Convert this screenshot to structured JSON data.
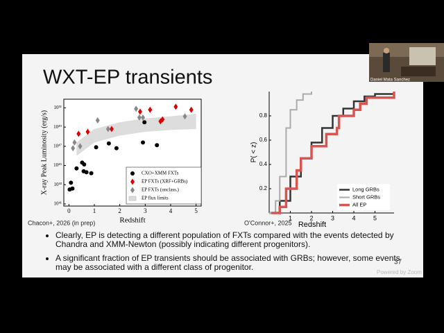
{
  "slide": {
    "title": "WXT-EP transients",
    "captions": [
      "Chacon+, 2026 (in prep)",
      "O'Connor+, 2025"
    ],
    "bullets": [
      "Clearly, EP is detecting a different population of FXTs compared with the events detected by Chandra and XMM-Newton (possibly indicating different progenitors).",
      "A significant fraction of EP transients should be associated with GRBs; however, some events may be associated with a different class of progenitor."
    ],
    "page_number": "37"
  },
  "zoom": {
    "speaker": "Daniel Mata Sanchez",
    "watermark": "Powered by Zoom"
  },
  "chart_data": [
    {
      "type": "scatter",
      "x_label": "Redshift",
      "y_label": "X-ray Peak Luminosity (erg/s)",
      "log_y": true,
      "xlim": [
        -0.2,
        5.2
      ],
      "xticks": [
        0,
        1,
        2,
        3,
        4,
        5
      ],
      "ylim": [
        6e+40,
        8e+51
      ],
      "yticks": [
        {
          "value": 1e+41,
          "label": "10⁴¹"
        },
        {
          "value": 1e+43,
          "label": "10⁴³"
        },
        {
          "value": 1e+45,
          "label": "10⁴⁵"
        },
        {
          "value": 1e+47,
          "label": "10⁴⁷"
        },
        {
          "value": 1e+49,
          "label": "10⁴⁹"
        },
        {
          "value": 1e+51,
          "label": "10⁵¹"
        }
      ],
      "legend": "lower right",
      "series": [
        {
          "name": "CXO+XMM FXTs",
          "color": "#000000",
          "marker": "circle",
          "x": [
            0.08,
            0.14,
            0.03,
            0.3,
            0.52,
            0.58,
            0.69,
            0.6,
            0.88,
            1.07,
            1.57,
            1.87,
            2.91,
            2.97,
            3.46
          ],
          "values": [
            1.6e+43,
            4e+42,
            3.2e+42,
            5e+44,
            2e+45,
            2.5e+44,
            2e+44,
            1.3e+45,
            1.6e+44,
            8e+46,
            2e+47,
            6.3e+46,
            2.5e+47,
            3.2e+49,
            1.3e+47
          ]
        },
        {
          "name": "EP FXTs (XRF+GRBs)",
          "color": "#e00000",
          "marker": "diamond",
          "x": [
            0.38,
            0.74,
            1.68,
            2.8,
            3.19,
            3.6,
            3.68,
            4.2,
            4.81
          ],
          "values": [
            2e+48,
            3.2e+48,
            6.3e+48,
            4e+50,
            6.3e+50,
            4e+49,
            6.3e+49,
            1.3e+51,
            6.3e+50
          ]
        },
        {
          "name": "EP FXTs (unclass.)",
          "color": "#888888",
          "marker": "diamond",
          "x": [
            0.16,
            0.22,
            0.44,
            1.13,
            1.54,
            2.64,
            2.77,
            2.91,
            4.56
          ],
          "values": [
            6.3e+46,
            2.5e+47,
            1e+47,
            5e+49,
            6.3e+48,
            8e+50,
            1e+50,
            1e+50,
            1.3e+50
          ]
        }
      ],
      "band": {
        "name": "EP flux limits",
        "color": "#dddddd",
        "x": [
          0.3,
          1,
          2,
          3,
          4,
          5
        ],
        "low": [
          1e+46,
          2.5e+47,
          1.3e+48,
          3.2e+48,
          5e+48,
          6.3e+48
        ],
        "high": [
          2.5e+47,
          6.3e+48,
          3.2e+49,
          8e+49,
          1.3e+50,
          2.5e+50
        ]
      }
    },
    {
      "type": "line",
      "x_label": "Redshift",
      "y_label": "P( < z)",
      "drawstyle": "steps-post",
      "xlim": [
        0,
        5.9
      ],
      "xticks": [
        1,
        2,
        3,
        4,
        5
      ],
      "ylim": [
        0,
        1
      ],
      "yticks": [
        0.2,
        0.4,
        0.6,
        0.8
      ],
      "legend": "lower right",
      "series": [
        {
          "name": "Long GRBs",
          "color": "#333333",
          "width": 2.5,
          "x": [
            0,
            0.5,
            1,
            1.5,
            2,
            2.5,
            3,
            3.5,
            4,
            4.5,
            5,
            5.9
          ],
          "values": [
            0,
            0.1,
            0.3,
            0.45,
            0.58,
            0.7,
            0.8,
            0.86,
            0.92,
            0.96,
            0.98,
            1
          ]
        },
        {
          "name": "Short GRBs",
          "color": "#aaaaaa",
          "width": 2,
          "x": [
            0,
            0.3,
            0.5,
            0.8,
            1,
            1.3,
            1.6,
            2
          ],
          "values": [
            0,
            0.1,
            0.3,
            0.7,
            0.85,
            0.93,
            0.98,
            1
          ]
        },
        {
          "name": "All EP",
          "color": "#d9534f",
          "width": 3.5,
          "x": [
            0.1,
            0.5,
            0.8,
            1.3,
            1.5,
            2,
            2.5,
            2.7,
            3.2,
            3.3,
            4,
            4.3,
            4.6,
            5.9
          ],
          "values": [
            0,
            0.05,
            0.2,
            0.35,
            0.45,
            0.55,
            0.55,
            0.65,
            0.7,
            0.8,
            0.85,
            0.9,
            0.95,
            1
          ]
        }
      ]
    }
  ]
}
